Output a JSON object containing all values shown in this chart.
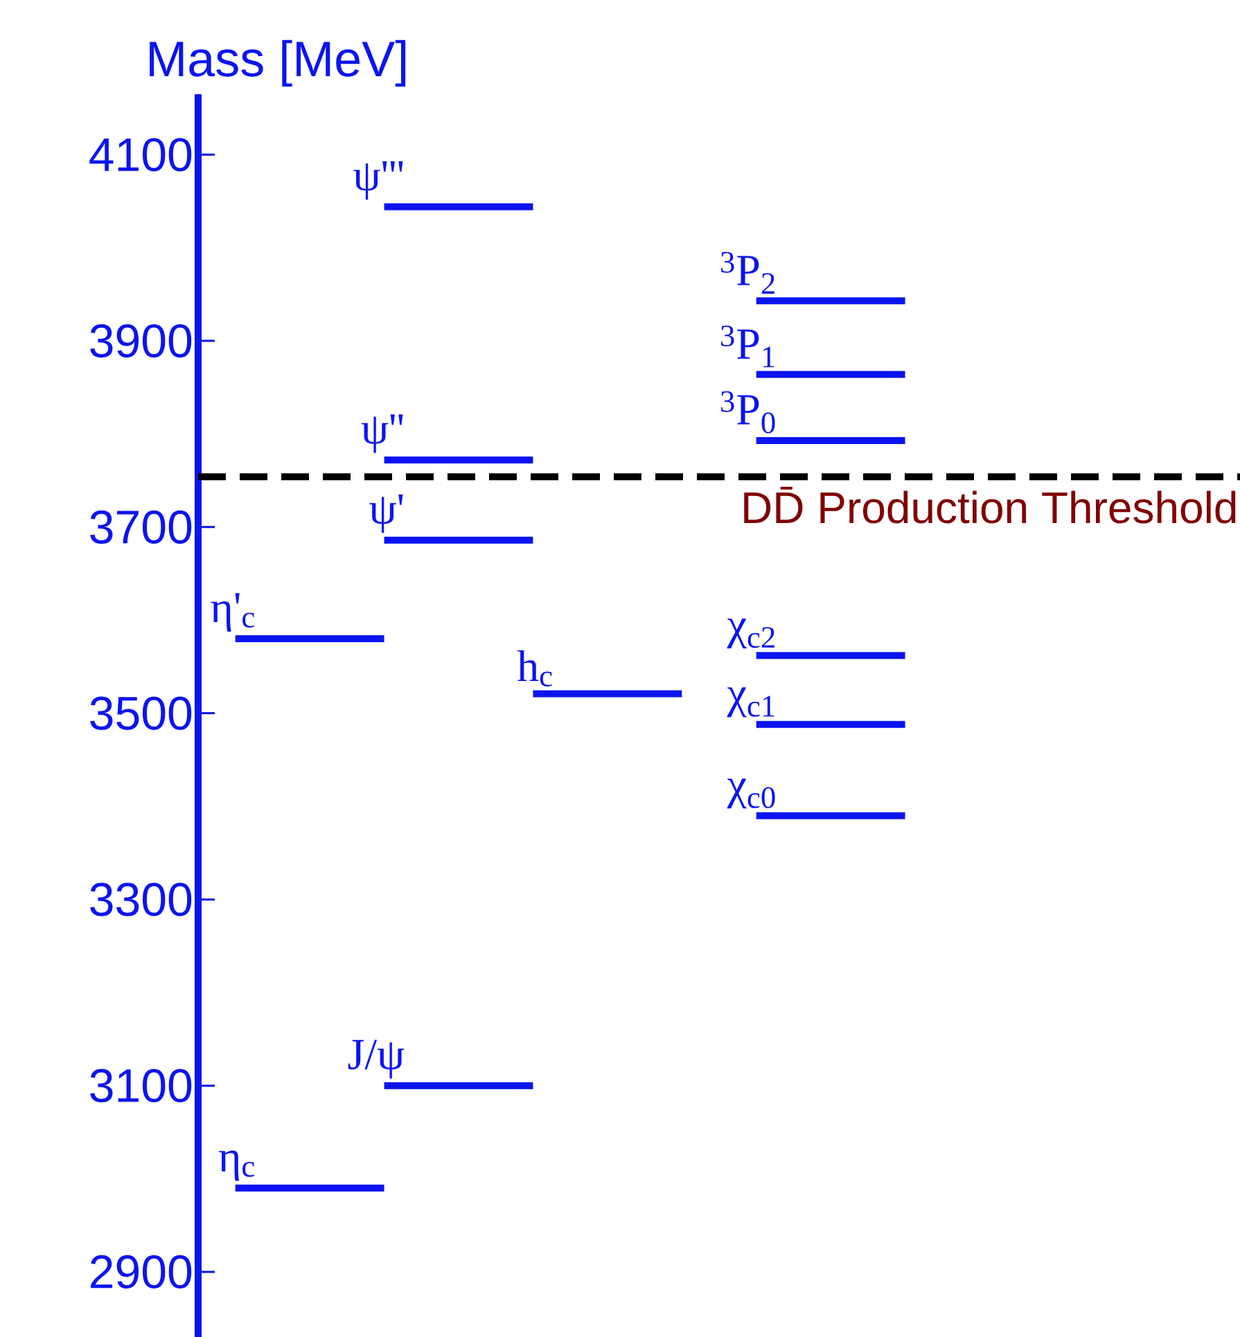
{
  "chart_data": {
    "type": "line",
    "ylabel": "Mass [MeV]",
    "categories": [
      null,
      null,
      null,
      null,
      null,
      null,
      null,
      null,
      null,
      null,
      null,
      null,
      null,
      null
    ],
    "ylim": [
      2830,
      4165
    ],
    "yticks": [
      2900,
      3100,
      3300,
      3500,
      3700,
      3900,
      4100
    ],
    "tick_labels": "y",
    "marker": "none",
    "series": [
      {
        "name": "η$_{c}$",
        "color": "#0a14f0",
        "values": [
          2990,
          2990,
          2990,
          null,
          null,
          null,
          null,
          null,
          null,
          null,
          null,
          null,
          null,
          null
        ]
      },
      {
        "name": "η'$_{c}$",
        "color": "#0a14f0",
        "values": [
          3580,
          3580,
          3580,
          null,
          null,
          null,
          null,
          null,
          null,
          null,
          null,
          null,
          null,
          null
        ]
      },
      {
        "name": "J/ψ",
        "color": "#0a14f0",
        "values": [
          null,
          null,
          3100,
          3100,
          3100,
          null,
          null,
          null,
          null,
          null,
          null,
          null,
          null,
          null
        ]
      },
      {
        "name": "ψ'",
        "color": "#0a14f0",
        "values": [
          null,
          null,
          3686,
          3686,
          3686,
          null,
          null,
          null,
          null,
          null,
          null,
          null,
          null,
          null
        ]
      },
      {
        "name": "ψ''",
        "color": "#0a14f0",
        "values": [
          null,
          null,
          3772,
          3772,
          3772,
          null,
          null,
          null,
          null,
          null,
          null,
          null,
          null,
          null
        ]
      },
      {
        "name": "ψ'''",
        "color": "#0a14f0",
        "values": [
          null,
          null,
          4044,
          4044,
          4044,
          null,
          null,
          null,
          null,
          null,
          null,
          null,
          null,
          null
        ]
      },
      {
        "name": "h$_{c}$",
        "color": "#0a14f0",
        "values": [
          null,
          null,
          null,
          null,
          3521,
          3521,
          3521,
          null,
          null,
          null,
          null,
          null,
          null,
          null
        ]
      },
      {
        "name": "χ$_{c0}$",
        "color": "#0a14f0",
        "values": [
          null,
          null,
          null,
          null,
          null,
          null,
          null,
          3390,
          3390,
          3390,
          null,
          null,
          null,
          null
        ]
      },
      {
        "name": "χ$_{c1}$",
        "color": "#0a14f0",
        "values": [
          null,
          null,
          null,
          null,
          null,
          null,
          null,
          3488,
          3488,
          3488,
          null,
          null,
          null,
          null
        ]
      },
      {
        "name": "χ$_{c2}$",
        "color": "#0a14f0",
        "values": [
          null,
          null,
          null,
          null,
          null,
          null,
          null,
          3562,
          3562,
          3562,
          null,
          null,
          null,
          null
        ]
      },
      {
        "name": "$^{3}$P$_{0}$",
        "color": "#0a14f0",
        "values": [
          null,
          null,
          null,
          null,
          null,
          null,
          null,
          3793,
          3793,
          3793,
          null,
          null,
          null,
          null
        ]
      },
      {
        "name": "$^{3}$P$_{1}$",
        "color": "#0a14f0",
        "values": [
          null,
          null,
          null,
          null,
          null,
          null,
          null,
          3864,
          3864,
          3864,
          null,
          null,
          null,
          null
        ]
      },
      {
        "name": "$^{3}$P$_{2}$",
        "color": "#0a14f0",
        "values": [
          null,
          null,
          null,
          null,
          null,
          null,
          null,
          3943,
          3943,
          3943,
          null,
          null,
          null,
          null
        ]
      }
    ],
    "ref_lines": [
      {
        "axis": "y",
        "value": 3754,
        "label": "DD̄ Production Threshold",
        "color": "#000000",
        "line_style": "dashed"
      }
    ]
  }
}
